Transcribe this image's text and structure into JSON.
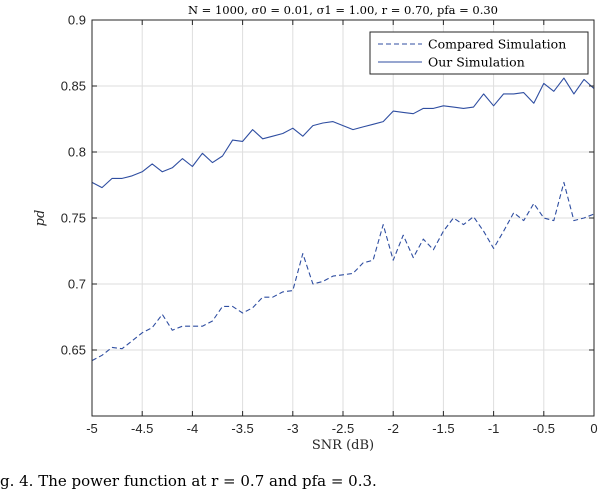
{
  "chart_data": {
    "type": "line",
    "title": "N = 1000, σ0 = 0.01, σ1 = 1.00, r = 0.70, pfa = 0.30",
    "xlabel": "SNR (dB)",
    "ylabel": "pd",
    "xlim": [
      -5,
      0
    ],
    "ylim": [
      0.6,
      0.9
    ],
    "xticks": [
      "-5",
      "-4.5",
      "-4",
      "-3.5",
      "-3",
      "-2.5",
      "-2",
      "-1.5",
      "-1",
      "-0.5",
      "0"
    ],
    "yticks": [
      "0.65",
      "0.7",
      "0.75",
      "0.8",
      "0.85",
      "0.9"
    ],
    "grid": true,
    "legend_position": "top-right",
    "x": [
      -5,
      -4.9,
      -4.8,
      -4.7,
      -4.6,
      -4.5,
      -4.4,
      -4.3,
      -4.2,
      -4.1,
      -4.0,
      -3.9,
      -3.8,
      -3.7,
      -3.6,
      -3.5,
      -3.4,
      -3.3,
      -3.2,
      -3.1,
      -3.0,
      -2.9,
      -2.8,
      -2.7,
      -2.6,
      -2.5,
      -2.4,
      -2.3,
      -2.2,
      -2.1,
      -2.0,
      -1.9,
      -1.8,
      -1.7,
      -1.6,
      -1.5,
      -1.4,
      -1.3,
      -1.2,
      -1.1,
      -1.0,
      -0.9,
      -0.8,
      -0.7,
      -0.6,
      -0.5,
      -0.4,
      -0.3,
      -0.2,
      -0.1,
      0
    ],
    "series": [
      {
        "name": "Compared Simulation",
        "style": "dashed",
        "color": "#2f4ea1",
        "values": [
          0.642,
          0.646,
          0.652,
          0.651,
          0.657,
          0.663,
          0.667,
          0.677,
          0.665,
          0.668,
          0.668,
          0.668,
          0.672,
          0.683,
          0.683,
          0.678,
          0.682,
          0.69,
          0.69,
          0.694,
          0.695,
          0.723,
          0.7,
          0.702,
          0.706,
          0.707,
          0.708,
          0.716,
          0.718,
          0.745,
          0.718,
          0.737,
          0.72,
          0.734,
          0.726,
          0.74,
          0.75,
          0.745,
          0.751,
          0.74,
          0.727,
          0.74,
          0.754,
          0.748,
          0.761,
          0.75,
          0.748,
          0.777,
          0.748,
          0.75,
          0.753
        ]
      },
      {
        "name": "Our Simulation",
        "style": "solid",
        "color": "#2f4ea1",
        "values": [
          0.777,
          0.773,
          0.78,
          0.78,
          0.782,
          0.785,
          0.791,
          0.785,
          0.788,
          0.795,
          0.789,
          0.799,
          0.792,
          0.797,
          0.809,
          0.808,
          0.817,
          0.81,
          0.812,
          0.814,
          0.818,
          0.812,
          0.82,
          0.822,
          0.823,
          0.82,
          0.817,
          0.819,
          0.821,
          0.823,
          0.831,
          0.83,
          0.829,
          0.833,
          0.833,
          0.835,
          0.834,
          0.833,
          0.834,
          0.844,
          0.835,
          0.844,
          0.844,
          0.845,
          0.837,
          0.852,
          0.846,
          0.856,
          0.844,
          0.855,
          0.848
        ]
      }
    ]
  },
  "caption": "g. 4.  The power function at r = 0.7 and pfa = 0.3."
}
